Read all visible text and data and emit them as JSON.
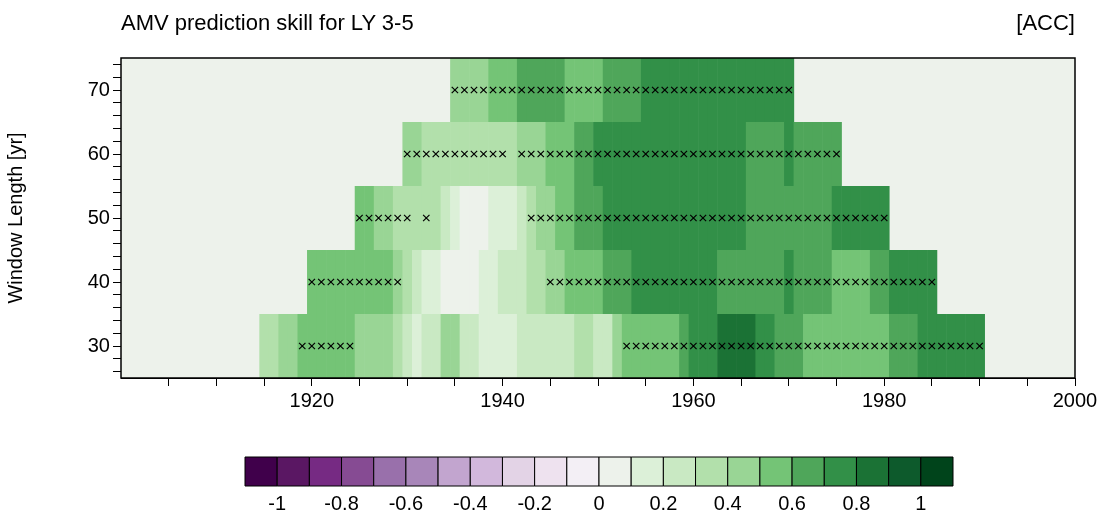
{
  "chart_data": {
    "type": "heatmap",
    "title": "AMV prediction skill for LY 3-5",
    "clabel": "[ACC]",
    "ylabel": "Window Length [yr]",
    "x": [
      1915,
      1916,
      1917,
      1918,
      1919,
      1920,
      1921,
      1922,
      1923,
      1924,
      1925,
      1926,
      1927,
      1928,
      1929,
      1930,
      1931,
      1932,
      1933,
      1934,
      1935,
      1936,
      1937,
      1938,
      1939,
      1940,
      1941,
      1942,
      1943,
      1944,
      1945,
      1946,
      1947,
      1948,
      1949,
      1950,
      1951,
      1952,
      1953,
      1954,
      1955,
      1956,
      1957,
      1958,
      1959,
      1960,
      1961,
      1962,
      1963,
      1964,
      1965,
      1966,
      1967,
      1968,
      1969,
      1970,
      1971,
      1972,
      1973,
      1974,
      1975,
      1976,
      1977,
      1978,
      1979,
      1980,
      1981,
      1982,
      1983,
      1984,
      1985,
      1986,
      1987,
      1988,
      1989,
      1990
    ],
    "xlim": [
      1900,
      2000
    ],
    "xticks": [
      {
        "value": 1905,
        "label": null
      },
      {
        "value": 1910,
        "label": null
      },
      {
        "value": 1915,
        "label": null
      },
      1920,
      {
        "value": 1925,
        "label": null
      },
      {
        "value": 1930,
        "label": null
      },
      {
        "value": 1935,
        "label": null
      },
      1940,
      {
        "value": 1945,
        "label": null
      },
      {
        "value": 1950,
        "label": null
      },
      {
        "value": 1955,
        "label": null
      },
      1960,
      {
        "value": 1965,
        "label": null
      },
      {
        "value": 1970,
        "label": null
      },
      {
        "value": 1975,
        "label": null
      },
      1980,
      {
        "value": 1985,
        "label": null
      },
      {
        "value": 1990,
        "label": null
      },
      {
        "value": 1995,
        "label": null
      },
      2000
    ],
    "ylim": [
      25,
      75
    ],
    "yticks": [
      {
        "value": 26,
        "label": null
      },
      {
        "value": 28,
        "label": null
      },
      30,
      {
        "value": 32,
        "label": null
      },
      {
        "value": 34,
        "label": null
      },
      {
        "value": 36,
        "label": null
      },
      {
        "value": 38,
        "label": null
      },
      40,
      {
        "value": 42,
        "label": null
      },
      {
        "value": 44,
        "label": null
      },
      {
        "value": 46,
        "label": null
      },
      {
        "value": 48,
        "label": null
      },
      50,
      {
        "value": 52,
        "label": null
      },
      {
        "value": 54,
        "label": null
      },
      {
        "value": 56,
        "label": null
      },
      {
        "value": 58,
        "label": null
      },
      60,
      {
        "value": 62,
        "label": null
      },
      {
        "value": 64,
        "label": null
      },
      {
        "value": 66,
        "label": null
      },
      {
        "value": 68,
        "label": null
      },
      70,
      {
        "value": 72,
        "label": null
      },
      {
        "value": 74,
        "label": null
      }
    ],
    "cells": [
      [
        null,
        null,
        null,
        null,
        null,
        null,
        null,
        null,
        null,
        null,
        null,
        null,
        null,
        null,
        null,
        null,
        null,
        null,
        null,
        null,
        0.45,
        0.45,
        0.45,
        0.45,
        0.55,
        0.55,
        0.55,
        0.65,
        0.65,
        0.65,
        0.65,
        0.65,
        0.55,
        0.55,
        0.55,
        0.55,
        0.65,
        0.65,
        0.65,
        0.65,
        0.75,
        0.75,
        0.75,
        0.75,
        0.75,
        0.75,
        0.75,
        0.75,
        0.75,
        0.75,
        0.75,
        0.75,
        0.75,
        0.75,
        0.75,
        0.75,
        null,
        null,
        null,
        null,
        null,
        null,
        null,
        null,
        null,
        null,
        null,
        null,
        null,
        null,
        null,
        null,
        null,
        null,
        null,
        null
      ],
      [
        null,
        null,
        null,
        null,
        null,
        null,
        null,
        null,
        null,
        null,
        null,
        null,
        null,
        null,
        null,
        0.45,
        0.45,
        0.35,
        0.35,
        0.35,
        0.35,
        0.35,
        0.35,
        0.35,
        0.35,
        0.35,
        0.35,
        0.45,
        0.45,
        0.45,
        0.55,
        0.55,
        0.55,
        0.65,
        0.65,
        0.75,
        0.75,
        0.75,
        0.75,
        0.75,
        0.75,
        0.75,
        0.75,
        0.75,
        0.75,
        0.75,
        0.75,
        0.75,
        0.75,
        0.75,
        0.75,
        0.65,
        0.65,
        0.65,
        0.65,
        0.75,
        0.65,
        0.65,
        0.65,
        0.65,
        0.65,
        null,
        null,
        null,
        null,
        null,
        null,
        null,
        null,
        null,
        null,
        null,
        null,
        null,
        null,
        null
      ],
      [
        null,
        null,
        null,
        null,
        null,
        null,
        null,
        null,
        null,
        null,
        0.55,
        0.55,
        0.45,
        0.45,
        0.35,
        0.35,
        0.35,
        0.35,
        0.35,
        0.25,
        0.15,
        0.05,
        0.05,
        0.05,
        0.15,
        0.15,
        0.15,
        0.25,
        0.35,
        0.45,
        0.45,
        0.55,
        0.55,
        0.65,
        0.65,
        0.65,
        0.75,
        0.75,
        0.75,
        0.75,
        0.75,
        0.75,
        0.75,
        0.75,
        0.75,
        0.75,
        0.75,
        0.75,
        0.75,
        0.75,
        0.75,
        0.65,
        0.65,
        0.65,
        0.65,
        0.65,
        0.65,
        0.65,
        0.65,
        0.65,
        0.75,
        0.75,
        0.75,
        0.75,
        0.75,
        0.75,
        null,
        null,
        null,
        null,
        null,
        null,
        null,
        null,
        null,
        null
      ],
      [
        null,
        null,
        null,
        null,
        null,
        0.55,
        0.55,
        0.55,
        0.55,
        0.55,
        0.55,
        0.55,
        0.55,
        0.55,
        0.45,
        0.35,
        0.25,
        0.15,
        0.15,
        0.05,
        0.05,
        0.05,
        0.05,
        0.15,
        0.15,
        0.25,
        0.25,
        0.25,
        0.35,
        0.35,
        0.45,
        0.45,
        0.55,
        0.55,
        0.55,
        0.55,
        0.65,
        0.65,
        0.65,
        0.75,
        0.75,
        0.75,
        0.75,
        0.75,
        0.75,
        0.75,
        0.75,
        0.75,
        0.65,
        0.65,
        0.65,
        0.65,
        0.65,
        0.65,
        0.65,
        0.75,
        0.65,
        0.65,
        0.65,
        0.65,
        0.55,
        0.55,
        0.55,
        0.55,
        0.65,
        0.65,
        0.75,
        0.75,
        0.75,
        0.75,
        0.75,
        null,
        null,
        null,
        null,
        null
      ],
      [
        0.35,
        0.35,
        0.45,
        0.45,
        0.55,
        0.55,
        0.55,
        0.55,
        0.55,
        0.55,
        0.45,
        0.45,
        0.45,
        0.45,
        0.35,
        0.25,
        0.15,
        0.25,
        0.25,
        0.45,
        0.45,
        0.25,
        0.25,
        0.15,
        0.15,
        0.15,
        0.15,
        0.25,
        0.25,
        0.25,
        0.25,
        0.25,
        0.25,
        0.35,
        0.35,
        0.25,
        0.25,
        0.45,
        0.55,
        0.55,
        0.55,
        0.55,
        0.55,
        0.55,
        0.65,
        0.75,
        0.75,
        0.75,
        0.85,
        0.85,
        0.85,
        0.85,
        0.75,
        0.75,
        0.65,
        0.65,
        0.65,
        0.55,
        0.55,
        0.55,
        0.55,
        0.55,
        0.55,
        0.55,
        0.55,
        0.55,
        0.65,
        0.65,
        0.65,
        0.75,
        0.75,
        0.75,
        0.75,
        0.75,
        0.75,
        0.75
      ]
    ],
    "colors": [
      "#40004b",
      "#5a1763",
      "#762a83",
      "#864b93",
      "#9970ab",
      "#a886b9",
      "#c2a5cf",
      "#d2b8dc",
      "#e3d3e6",
      "#eee2ef",
      "#f3eff5",
      "#edf2eb",
      "#dcf0d8",
      "#c9e9c3",
      "#b2e0ab",
      "#99d595",
      "#74c476",
      "#4fa65a",
      "#329048",
      "#1b7235",
      "#0d5a2c",
      "#00441b"
    ],
    "clim": [
      -1.1,
      1.1
    ],
    "cticks": [
      -1,
      -0.8,
      -0.6,
      -0.4,
      -0.2,
      0,
      0.2,
      0.4,
      0.6,
      0.8,
      1
    ],
    "series": [
      {
        "type": "scatter",
        "marker": "cross",
        "color": "#000000",
        "x": [
          1935,
          1936,
          1937,
          1938,
          1939,
          1940,
          1941,
          1942,
          1943,
          1944,
          1945,
          1946,
          1947,
          1948,
          1949,
          1950,
          1951,
          1952,
          1953,
          1954,
          1955,
          1956,
          1957,
          1958,
          1959,
          1960,
          1961,
          1962,
          1963,
          1964,
          1965,
          1966,
          1967,
          1968,
          1969,
          1970,
          1930,
          1931,
          1932,
          1933,
          1934,
          1935,
          1936,
          1937,
          1938,
          1939,
          1940,
          1942,
          1943,
          1944,
          1945,
          1946,
          1947,
          1948,
          1949,
          1950,
          1951,
          1952,
          1953,
          1954,
          1955,
          1956,
          1957,
          1958,
          1959,
          1960,
          1961,
          1962,
          1963,
          1964,
          1965,
          1966,
          1967,
          1968,
          1969,
          1970,
          1971,
          1972,
          1973,
          1974,
          1975,
          1925,
          1926,
          1927,
          1928,
          1929,
          1930,
          1932,
          1943,
          1944,
          1945,
          1946,
          1947,
          1948,
          1949,
          1950,
          1951,
          1952,
          1953,
          1954,
          1955,
          1956,
          1957,
          1958,
          1959,
          1960,
          1961,
          1962,
          1963,
          1964,
          1965,
          1966,
          1967,
          1968,
          1969,
          1970,
          1971,
          1972,
          1973,
          1974,
          1975,
          1976,
          1977,
          1978,
          1979,
          1980,
          1920,
          1921,
          1922,
          1923,
          1924,
          1925,
          1926,
          1927,
          1928,
          1929,
          1945,
          1946,
          1947,
          1948,
          1949,
          1950,
          1951,
          1952,
          1953,
          1954,
          1955,
          1956,
          1957,
          1958,
          1959,
          1960,
          1961,
          1962,
          1963,
          1964,
          1965,
          1966,
          1967,
          1968,
          1969,
          1970,
          1971,
          1972,
          1973,
          1974,
          1975,
          1976,
          1977,
          1978,
          1979,
          1980,
          1981,
          1982,
          1983,
          1984,
          1985,
          1919,
          1920,
          1921,
          1922,
          1923,
          1924,
          1953,
          1954,
          1955,
          1956,
          1957,
          1958,
          1959,
          1960,
          1961,
          1962,
          1963,
          1964,
          1965,
          1966,
          1967,
          1968,
          1969,
          1970,
          1971,
          1972,
          1973,
          1974,
          1975,
          1976,
          1977,
          1978,
          1979,
          1980,
          1981,
          1982,
          1983,
          1984,
          1985,
          1986,
          1987,
          1988,
          1989,
          1990
        ],
        "values": [
          70,
          70,
          70,
          70,
          70,
          70,
          70,
          70,
          70,
          70,
          70,
          70,
          70,
          70,
          70,
          70,
          70,
          70,
          70,
          70,
          70,
          70,
          70,
          70,
          70,
          70,
          70,
          70,
          70,
          70,
          70,
          70,
          70,
          70,
          70,
          70,
          60,
          60,
          60,
          60,
          60,
          60,
          60,
          60,
          60,
          60,
          60,
          60,
          60,
          60,
          60,
          60,
          60,
          60,
          60,
          60,
          60,
          60,
          60,
          60,
          60,
          60,
          60,
          60,
          60,
          60,
          60,
          60,
          60,
          60,
          60,
          60,
          60,
          60,
          60,
          60,
          60,
          60,
          60,
          60,
          60,
          50,
          50,
          50,
          50,
          50,
          50,
          50,
          50,
          50,
          50,
          50,
          50,
          50,
          50,
          50,
          50,
          50,
          50,
          50,
          50,
          50,
          50,
          50,
          50,
          50,
          50,
          50,
          50,
          50,
          50,
          50,
          50,
          50,
          50,
          50,
          50,
          50,
          50,
          50,
          50,
          50,
          50,
          50,
          50,
          50,
          40,
          40,
          40,
          40,
          40,
          40,
          40,
          40,
          40,
          40,
          40,
          40,
          40,
          40,
          40,
          40,
          40,
          40,
          40,
          40,
          40,
          40,
          40,
          40,
          40,
          40,
          40,
          40,
          40,
          40,
          40,
          40,
          40,
          40,
          40,
          40,
          40,
          40,
          40,
          40,
          40,
          40,
          40,
          40,
          40,
          40,
          40,
          40,
          40,
          40,
          40,
          30,
          30,
          30,
          30,
          30,
          30,
          30,
          30,
          30,
          30,
          30,
          30,
          30,
          30,
          30,
          30,
          30,
          30,
          30,
          30,
          30,
          30,
          30,
          30,
          30,
          30,
          30,
          30,
          30,
          30,
          30,
          30,
          30,
          30,
          30,
          30,
          30,
          30,
          30,
          30,
          30,
          30,
          30,
          30
        ]
      }
    ]
  }
}
